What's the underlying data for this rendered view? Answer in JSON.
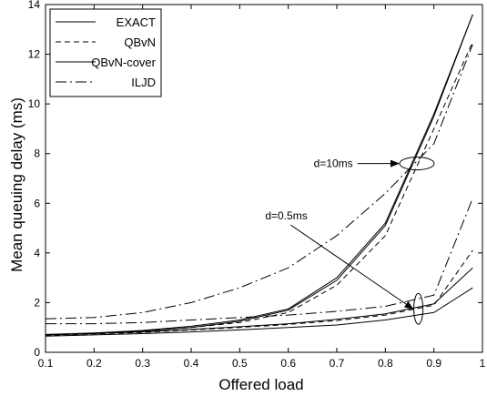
{
  "chart_data": {
    "type": "line",
    "title": "",
    "xlabel": "Offered load",
    "ylabel": "Mean queuing delay (ms)",
    "xlim": [
      0.1,
      1.0
    ],
    "ylim": [
      0,
      14
    ],
    "xticks": [
      0.1,
      0.2,
      0.3,
      0.4,
      0.5,
      0.6,
      0.7,
      0.8,
      0.9,
      1
    ],
    "yticks": [
      0,
      2,
      4,
      6,
      8,
      10,
      12,
      14
    ],
    "xtick_labels": [
      "0.1",
      "0.2",
      "0.3",
      "0.4",
      "0.5",
      "0.6",
      "0.7",
      "0.8",
      "0.9",
      "1"
    ],
    "ytick_labels": [
      "0",
      "2",
      "4",
      "6",
      "8",
      "10",
      "12",
      "14"
    ],
    "grid": false,
    "legend_position": "top-left",
    "x": [
      0.1,
      0.2,
      0.3,
      0.4,
      0.5,
      0.6,
      0.7,
      0.8,
      0.9,
      0.98
    ],
    "series": [
      {
        "name": "EXACT",
        "style": "solid",
        "group": "d=10ms",
        "values": [
          0.7,
          0.75,
          0.85,
          1.0,
          1.25,
          1.7,
          2.9,
          5.1,
          9.5,
          13.6
        ]
      },
      {
        "name": "QBvN",
        "style": "dashed",
        "group": "d=10ms",
        "values": [
          0.7,
          0.75,
          0.85,
          1.0,
          1.2,
          1.6,
          2.7,
          4.7,
          9.0,
          12.5
        ]
      },
      {
        "name": "QBvN-cover",
        "style": "solid",
        "group": "d=10ms",
        "values": [
          0.72,
          0.78,
          0.88,
          1.05,
          1.3,
          1.75,
          3.0,
          5.2,
          9.6,
          13.6
        ]
      },
      {
        "name": "ILJD",
        "style": "dashdot",
        "group": "d=10ms",
        "values": [
          1.35,
          1.4,
          1.6,
          2.0,
          2.6,
          3.4,
          4.7,
          6.4,
          8.4,
          12.4
        ]
      },
      {
        "name": "EXACT",
        "style": "solid",
        "group": "d=0.5ms",
        "values": [
          0.65,
          0.7,
          0.75,
          0.82,
          0.9,
          1.0,
          1.1,
          1.3,
          1.6,
          2.6
        ]
      },
      {
        "name": "QBvN",
        "style": "dashed",
        "group": "d=0.5ms",
        "values": [
          0.68,
          0.74,
          0.8,
          0.9,
          1.0,
          1.12,
          1.28,
          1.5,
          1.9,
          4.1
        ]
      },
      {
        "name": "QBvN-cover",
        "style": "solid",
        "group": "d=0.5ms",
        "values": [
          0.7,
          0.76,
          0.82,
          0.92,
          1.03,
          1.15,
          1.33,
          1.55,
          1.95,
          3.4
        ]
      },
      {
        "name": "ILJD",
        "style": "dashdot",
        "group": "d=0.5ms",
        "values": [
          1.15,
          1.15,
          1.2,
          1.3,
          1.4,
          1.5,
          1.65,
          1.85,
          2.3,
          6.2
        ]
      }
    ],
    "legend": [
      {
        "label": "EXACT",
        "style": "solid"
      },
      {
        "label": "QBvN",
        "style": "dashed"
      },
      {
        "label": "QBvN-cover",
        "style": "solid"
      },
      {
        "label": "ILJD",
        "style": "dashdot"
      }
    ],
    "annotations": [
      {
        "text": "d=10ms",
        "ellipse_center": [
          0.865,
          7.6
        ],
        "text_anchor": [
          0.72,
          7.6
        ]
      },
      {
        "text": "d=0.5ms",
        "ellipse_center": [
          0.868,
          1.75
        ],
        "text_anchor": [
          0.62,
          5.2
        ]
      }
    ]
  }
}
